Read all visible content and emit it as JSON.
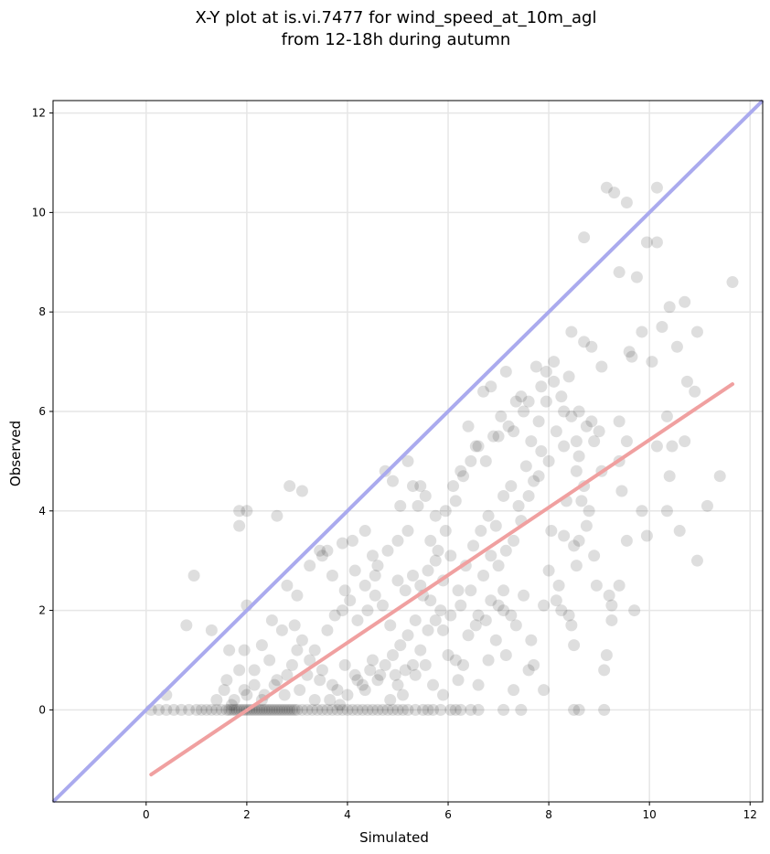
{
  "chart_data": {
    "type": "scatter",
    "title_line1": "X-Y plot at is.vi.7477 for wind_speed_at_10m_agl",
    "title_line2": "from 12-18h during autumn",
    "xlabel": "Simulated",
    "ylabel": "Observed",
    "xlim": [
      -1.85,
      12.25
    ],
    "ylim": [
      -1.85,
      12.25
    ],
    "xticks": [
      0,
      2,
      4,
      6,
      8,
      10,
      12
    ],
    "yticks": [
      0,
      2,
      4,
      6,
      8,
      10,
      12
    ],
    "grid": true,
    "colors": {
      "points": "#000000",
      "identity_line": "#aaaaee",
      "fit_line": "#f0a0a0"
    },
    "identity_line": {
      "label": "",
      "x": [
        -1.85,
        12.25
      ],
      "y": [
        -1.85,
        12.25
      ]
    },
    "fit_line": {
      "label": "",
      "x": [
        0.1,
        11.65
      ],
      "y": [
        -1.3,
        6.55
      ]
    },
    "points": [
      [
        0.95,
        2.7
      ],
      [
        0.8,
        1.7
      ],
      [
        1.3,
        1.6
      ],
      [
        1.65,
        1.2
      ],
      [
        1.95,
        1.2
      ],
      [
        1.85,
        4.0
      ],
      [
        2.0,
        4.0
      ],
      [
        1.85,
        3.7
      ],
      [
        2.0,
        2.1
      ],
      [
        2.6,
        3.9
      ],
      [
        2.85,
        4.5
      ],
      [
        3.1,
        4.4
      ],
      [
        3.5,
        3.1
      ],
      [
        3.6,
        3.2
      ],
      [
        3.9,
        3.35
      ],
      [
        4.1,
        3.4
      ],
      [
        4.35,
        3.6
      ],
      [
        4.5,
        3.1
      ],
      [
        4.6,
        2.9
      ],
      [
        4.75,
        4.8
      ],
      [
        4.9,
        4.6
      ],
      [
        5.05,
        4.1
      ],
      [
        5.2,
        5.0
      ],
      [
        5.3,
        4.5
      ],
      [
        5.45,
        4.5
      ],
      [
        5.65,
        3.4
      ],
      [
        5.8,
        3.2
      ],
      [
        5.95,
        4.0
      ],
      [
        6.1,
        4.5
      ],
      [
        6.25,
        4.8
      ],
      [
        6.4,
        5.7
      ],
      [
        6.55,
        5.3
      ],
      [
        6.7,
        6.4
      ],
      [
        6.85,
        6.5
      ],
      [
        7.0,
        5.5
      ],
      [
        7.15,
        6.8
      ],
      [
        7.3,
        5.6
      ],
      [
        7.45,
        6.3
      ],
      [
        7.6,
        6.2
      ],
      [
        7.75,
        6.9
      ],
      [
        7.85,
        6.5
      ],
      [
        7.95,
        6.8
      ],
      [
        8.1,
        7.0
      ],
      [
        8.3,
        6.0
      ],
      [
        8.45,
        7.6
      ],
      [
        8.55,
        5.4
      ],
      [
        8.7,
        7.4
      ],
      [
        8.85,
        7.3
      ],
      [
        9.05,
        6.9
      ],
      [
        9.15,
        10.5
      ],
      [
        9.3,
        10.4
      ],
      [
        9.55,
        10.2
      ],
      [
        8.7,
        9.5
      ],
      [
        9.4,
        8.8
      ],
      [
        9.75,
        8.7
      ],
      [
        9.95,
        9.4
      ],
      [
        10.15,
        9.4
      ],
      [
        10.15,
        10.5
      ],
      [
        10.4,
        8.1
      ],
      [
        10.7,
        8.2
      ],
      [
        11.65,
        8.6
      ],
      [
        9.85,
        7.6
      ],
      [
        10.05,
        7.0
      ],
      [
        10.25,
        7.7
      ],
      [
        10.55,
        7.3
      ],
      [
        10.75,
        6.6
      ],
      [
        10.9,
        6.4
      ],
      [
        10.95,
        7.6
      ],
      [
        9.6,
        7.2
      ],
      [
        9.65,
        7.1
      ],
      [
        9.4,
        5.8
      ],
      [
        9.55,
        5.4
      ],
      [
        9.45,
        4.4
      ],
      [
        9.4,
        5.0
      ],
      [
        9.85,
        4.0
      ],
      [
        10.15,
        5.3
      ],
      [
        10.35,
        5.9
      ],
      [
        10.4,
        4.7
      ],
      [
        10.45,
        5.3
      ],
      [
        10.7,
        5.4
      ],
      [
        10.35,
        4.0
      ],
      [
        10.6,
        3.6
      ],
      [
        10.95,
        3.0
      ],
      [
        11.15,
        4.1
      ],
      [
        11.4,
        4.7
      ],
      [
        9.55,
        3.4
      ],
      [
        9.95,
        3.5
      ],
      [
        9.4,
        2.5
      ],
      [
        9.2,
        2.3
      ],
      [
        9.25,
        1.8
      ],
      [
        9.15,
        1.1
      ],
      [
        9.1,
        0.8
      ],
      [
        9.7,
        2.0
      ],
      [
        8.95,
        2.5
      ],
      [
        8.75,
        3.7
      ],
      [
        8.8,
        4.0
      ],
      [
        8.5,
        3.3
      ],
      [
        8.6,
        3.4
      ],
      [
        8.3,
        3.5
      ],
      [
        8.05,
        3.6
      ],
      [
        8.2,
        2.5
      ],
      [
        8.15,
        2.2
      ],
      [
        8.4,
        1.9
      ],
      [
        8.45,
        1.7
      ],
      [
        8.5,
        1.3
      ],
      [
        7.9,
        2.1
      ],
      [
        7.65,
        1.4
      ],
      [
        7.5,
        2.3
      ],
      [
        7.25,
        1.9
      ],
      [
        7.1,
        2.0
      ],
      [
        7.1,
        2.4
      ],
      [
        7.35,
        1.7
      ],
      [
        6.95,
        1.4
      ],
      [
        7.0,
        2.1
      ],
      [
        6.85,
        2.2
      ],
      [
        6.75,
        1.8
      ],
      [
        6.6,
        1.9
      ],
      [
        6.55,
        1.7
      ],
      [
        6.4,
        1.5
      ],
      [
        6.3,
        0.9
      ],
      [
        6.15,
        1.0
      ],
      [
        6.0,
        1.1
      ],
      [
        5.9,
        1.6
      ],
      [
        5.75,
        1.8
      ],
      [
        5.6,
        1.6
      ],
      [
        5.45,
        1.2
      ],
      [
        5.3,
        0.9
      ],
      [
        5.15,
        0.8
      ],
      [
        5.0,
        0.5
      ],
      [
        4.85,
        0.2
      ],
      [
        4.65,
        0.7
      ],
      [
        4.5,
        1.0
      ],
      [
        4.35,
        0.4
      ],
      [
        4.2,
        0.6
      ],
      [
        4.0,
        0.3
      ],
      [
        3.85,
        0.1
      ],
      [
        3.7,
        0.5
      ],
      [
        3.5,
        0.8
      ],
      [
        3.35,
        0.2
      ],
      [
        3.2,
        0.7
      ],
      [
        3.05,
        0.4
      ],
      [
        2.9,
        0.9
      ],
      [
        2.75,
        0.3
      ],
      [
        2.6,
        0.6
      ],
      [
        2.45,
        1.0
      ],
      [
        2.3,
        0.2
      ],
      [
        2.15,
        0.5
      ],
      [
        2.0,
        0.3
      ],
      [
        1.85,
        0.8
      ],
      [
        1.7,
        0.1
      ],
      [
        1.55,
        0.4
      ],
      [
        1.4,
        0.2
      ],
      [
        0.4,
        0.3
      ],
      [
        2.3,
        1.3
      ],
      [
        2.5,
        1.8
      ],
      [
        2.7,
        1.6
      ],
      [
        2.95,
        1.7
      ],
      [
        3.1,
        1.4
      ],
      [
        3.35,
        1.2
      ],
      [
        3.6,
        1.6
      ],
      [
        3.75,
        1.9
      ],
      [
        3.9,
        2.0
      ],
      [
        4.05,
        2.2
      ],
      [
        4.2,
        1.8
      ],
      [
        4.4,
        2.0
      ],
      [
        4.55,
        2.3
      ],
      [
        4.7,
        2.1
      ],
      [
        4.85,
        1.7
      ],
      [
        5.0,
        2.6
      ],
      [
        5.15,
        2.4
      ],
      [
        5.3,
        2.7
      ],
      [
        5.45,
        2.5
      ],
      [
        5.6,
        2.8
      ],
      [
        5.75,
        3.0
      ],
      [
        5.9,
        2.6
      ],
      [
        6.05,
        3.1
      ],
      [
        6.2,
        2.4
      ],
      [
        6.35,
        2.9
      ],
      [
        6.5,
        3.3
      ],
      [
        6.65,
        3.6
      ],
      [
        6.8,
        3.9
      ],
      [
        6.95,
        3.7
      ],
      [
        7.1,
        4.3
      ],
      [
        7.25,
        4.5
      ],
      [
        7.4,
        4.1
      ],
      [
        7.55,
        4.9
      ],
      [
        7.7,
        4.6
      ],
      [
        7.85,
        5.2
      ],
      [
        8.0,
        5.0
      ],
      [
        8.15,
        5.6
      ],
      [
        8.3,
        5.3
      ],
      [
        8.45,
        5.9
      ],
      [
        8.6,
        5.1
      ],
      [
        8.75,
        5.7
      ],
      [
        8.9,
        5.4
      ],
      [
        9.05,
        4.8
      ],
      [
        8.7,
        4.5
      ],
      [
        8.55,
        4.8
      ],
      [
        8.35,
        4.2
      ],
      [
        7.8,
        4.7
      ],
      [
        7.6,
        4.3
      ],
      [
        7.45,
        3.8
      ],
      [
        7.3,
        3.4
      ],
      [
        7.15,
        3.2
      ],
      [
        7.0,
        2.9
      ],
      [
        6.85,
        3.1
      ],
      [
        6.7,
        2.7
      ],
      [
        6.45,
        2.4
      ],
      [
        6.25,
        2.1
      ],
      [
        6.05,
        1.9
      ],
      [
        5.85,
        2.0
      ],
      [
        5.65,
        2.2
      ],
      [
        5.5,
        2.3
      ],
      [
        5.35,
        1.8
      ],
      [
        5.2,
        1.5
      ],
      [
        5.05,
        1.3
      ],
      [
        4.9,
        1.1
      ],
      [
        4.75,
        0.9
      ],
      [
        4.6,
        0.6
      ],
      [
        4.45,
        0.8
      ],
      [
        4.3,
        0.5
      ],
      [
        4.15,
        0.7
      ],
      [
        3.95,
        0.9
      ],
      [
        3.8,
        0.4
      ],
      [
        3.65,
        0.2
      ],
      [
        3.45,
        0.6
      ],
      [
        3.25,
        1.0
      ],
      [
        3.0,
        1.2
      ],
      [
        2.8,
        0.7
      ],
      [
        2.55,
        0.5
      ],
      [
        2.35,
        0.3
      ],
      [
        2.15,
        0.8
      ],
      [
        1.95,
        0.4
      ],
      [
        1.75,
        0.2
      ],
      [
        1.6,
        0.6
      ],
      [
        2.8,
        2.5
      ],
      [
        3.0,
        2.3
      ],
      [
        3.25,
        2.9
      ],
      [
        3.45,
        3.2
      ],
      [
        3.7,
        2.7
      ],
      [
        3.95,
        2.4
      ],
      [
        4.15,
        2.8
      ],
      [
        4.35,
        2.5
      ],
      [
        4.55,
        2.7
      ],
      [
        4.8,
        3.2
      ],
      [
        5.0,
        3.4
      ],
      [
        5.2,
        3.6
      ],
      [
        5.4,
        4.1
      ],
      [
        5.55,
        4.3
      ],
      [
        5.75,
        3.9
      ],
      [
        5.95,
        3.6
      ],
      [
        6.15,
        4.2
      ],
      [
        6.3,
        4.7
      ],
      [
        6.45,
        5.0
      ],
      [
        6.6,
        5.3
      ],
      [
        6.75,
        5.0
      ],
      [
        6.9,
        5.5
      ],
      [
        7.05,
        5.9
      ],
      [
        7.2,
        5.7
      ],
      [
        7.35,
        6.2
      ],
      [
        7.5,
        6.0
      ],
      [
        7.65,
        5.4
      ],
      [
        7.8,
        5.8
      ],
      [
        7.95,
        6.2
      ],
      [
        8.1,
        6.6
      ],
      [
        8.25,
        6.3
      ],
      [
        8.4,
        6.7
      ],
      [
        8.6,
        6.0
      ],
      [
        8.85,
        5.8
      ],
      [
        9.0,
        5.6
      ],
      [
        7.7,
        0.9
      ],
      [
        7.9,
        0.4
      ],
      [
        7.6,
        0.8
      ],
      [
        7.3,
        0.4
      ],
      [
        7.15,
        1.1
      ],
      [
        6.8,
        1.0
      ],
      [
        6.6,
        0.5
      ],
      [
        6.2,
        0.6
      ],
      [
        5.9,
        0.3
      ],
      [
        5.7,
        0.5
      ],
      [
        5.55,
        0.9
      ],
      [
        5.35,
        0.7
      ],
      [
        5.1,
        0.3
      ],
      [
        4.95,
        0.7
      ],
      [
        8.65,
        4.2
      ],
      [
        8.9,
        3.1
      ],
      [
        9.25,
        2.1
      ],
      [
        8.0,
        2.8
      ],
      [
        8.25,
        2.0
      ],
      [
        8.55,
        2.9
      ],
      [
        0.1,
        0
      ],
      [
        0.25,
        0
      ],
      [
        0.4,
        0
      ],
      [
        0.55,
        0
      ],
      [
        0.7,
        0
      ],
      [
        0.85,
        0
      ],
      [
        1.0,
        0
      ],
      [
        1.1,
        0
      ],
      [
        1.2,
        0
      ],
      [
        1.3,
        0
      ],
      [
        1.4,
        0
      ],
      [
        1.5,
        0
      ],
      [
        1.6,
        0
      ],
      [
        1.65,
        0
      ],
      [
        1.7,
        0
      ],
      [
        1.75,
        0
      ],
      [
        1.8,
        0
      ],
      [
        1.85,
        0
      ],
      [
        1.9,
        0
      ],
      [
        1.95,
        0
      ],
      [
        2.0,
        0
      ],
      [
        2.05,
        0
      ],
      [
        2.1,
        0
      ],
      [
        2.15,
        0
      ],
      [
        2.2,
        0
      ],
      [
        2.25,
        0
      ],
      [
        2.3,
        0
      ],
      [
        2.35,
        0
      ],
      [
        2.4,
        0
      ],
      [
        2.45,
        0
      ],
      [
        2.5,
        0
      ],
      [
        2.55,
        0
      ],
      [
        2.6,
        0
      ],
      [
        2.65,
        0
      ],
      [
        2.7,
        0
      ],
      [
        2.75,
        0
      ],
      [
        2.8,
        0
      ],
      [
        2.85,
        0
      ],
      [
        2.9,
        0
      ],
      [
        2.95,
        0
      ],
      [
        3.0,
        0
      ],
      [
        3.1,
        0
      ],
      [
        3.2,
        0
      ],
      [
        3.3,
        0
      ],
      [
        3.4,
        0
      ],
      [
        3.5,
        0
      ],
      [
        3.6,
        0
      ],
      [
        3.7,
        0
      ],
      [
        3.8,
        0
      ],
      [
        3.9,
        0
      ],
      [
        4.0,
        0
      ],
      [
        4.1,
        0
      ],
      [
        4.2,
        0
      ],
      [
        4.3,
        0
      ],
      [
        4.4,
        0
      ],
      [
        4.5,
        0
      ],
      [
        4.6,
        0
      ],
      [
        4.7,
        0
      ],
      [
        4.8,
        0
      ],
      [
        4.9,
        0
      ],
      [
        5.0,
        0
      ],
      [
        5.1,
        0
      ],
      [
        5.2,
        0
      ],
      [
        5.35,
        0
      ],
      [
        5.5,
        0
      ],
      [
        5.6,
        0
      ],
      [
        5.7,
        0
      ],
      [
        5.85,
        0
      ],
      [
        6.05,
        0
      ],
      [
        6.15,
        0
      ],
      [
        6.25,
        0
      ],
      [
        6.45,
        0
      ],
      [
        6.6,
        0
      ],
      [
        7.1,
        0
      ],
      [
        7.45,
        0
      ],
      [
        8.5,
        0
      ],
      [
        8.6,
        0
      ],
      [
        9.1,
        0
      ]
    ]
  }
}
